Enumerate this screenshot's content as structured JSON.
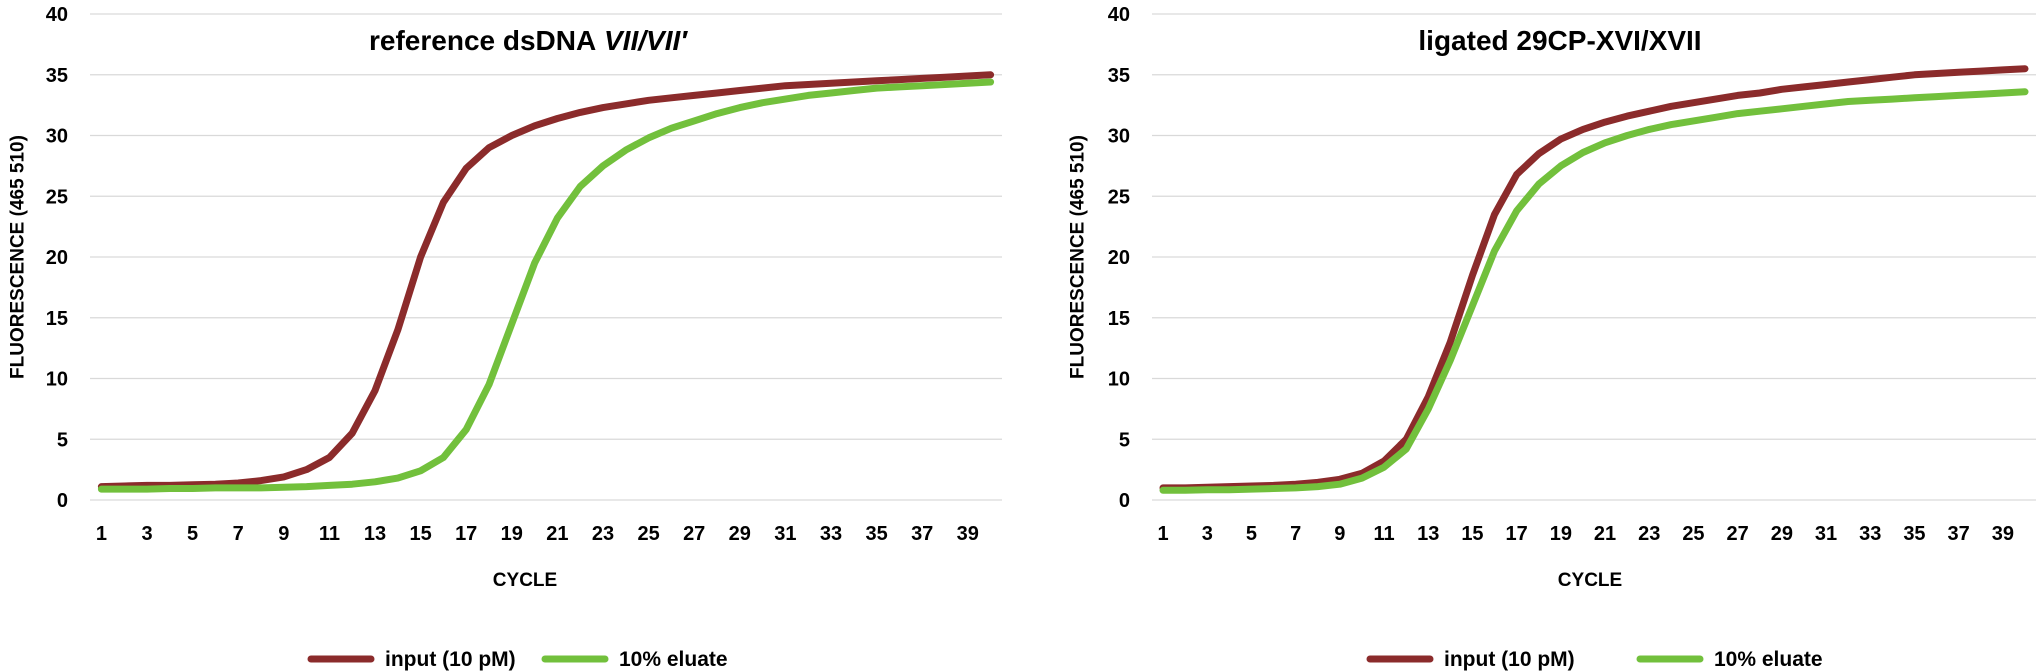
{
  "colors": {
    "input": "#8b2b2b",
    "eluate": "#72c03c",
    "grid": "#d9d9d9"
  },
  "chart_data": [
    {
      "type": "line",
      "title": "reference dsDNA",
      "title_italic": "VII/VII′",
      "xlabel": "CYCLE",
      "ylabel": "FLUORESCENCE (465 510)",
      "ylim": [
        0,
        40
      ],
      "yticks": [
        0,
        5,
        10,
        15,
        20,
        25,
        30,
        35,
        40
      ],
      "xticks": [
        1,
        3,
        5,
        7,
        9,
        11,
        13,
        15,
        17,
        19,
        21,
        23,
        25,
        27,
        29,
        31,
        33,
        35,
        37,
        39
      ],
      "grid": "horizontal",
      "legend_position": "bottom",
      "x": [
        1,
        2,
        3,
        4,
        5,
        6,
        7,
        8,
        9,
        10,
        11,
        12,
        13,
        14,
        15,
        16,
        17,
        18,
        19,
        20,
        21,
        22,
        23,
        24,
        25,
        26,
        27,
        28,
        29,
        30,
        31,
        32,
        33,
        34,
        35,
        36,
        37,
        38,
        39,
        40
      ],
      "series": [
        {
          "name": "input (10 pM)",
          "color_key": "input",
          "values": [
            1.1,
            1.15,
            1.2,
            1.2,
            1.25,
            1.3,
            1.4,
            1.6,
            1.9,
            2.5,
            3.5,
            5.5,
            9.0,
            14.0,
            20.0,
            24.5,
            27.3,
            29.0,
            30.0,
            30.8,
            31.4,
            31.9,
            32.3,
            32.6,
            32.9,
            33.1,
            33.3,
            33.5,
            33.7,
            33.9,
            34.1,
            34.2,
            34.3,
            34.4,
            34.5,
            34.6,
            34.7,
            34.8,
            34.9,
            35.0
          ]
        },
        {
          "name": "10% eluate",
          "color_key": "eluate",
          "values": [
            0.9,
            0.9,
            0.9,
            0.95,
            0.95,
            1.0,
            1.0,
            1.0,
            1.05,
            1.1,
            1.2,
            1.3,
            1.5,
            1.8,
            2.4,
            3.5,
            5.8,
            9.5,
            14.5,
            19.5,
            23.2,
            25.8,
            27.5,
            28.8,
            29.8,
            30.6,
            31.2,
            31.8,
            32.3,
            32.7,
            33.0,
            33.3,
            33.5,
            33.7,
            33.9,
            34.0,
            34.1,
            34.2,
            34.3,
            34.4
          ]
        }
      ]
    },
    {
      "type": "line",
      "title": "ligated 29CP-XVI/XVII",
      "xlabel": "CYCLE",
      "ylabel": "FLUORESCENCE (465 510)",
      "ylim": [
        0,
        40
      ],
      "yticks": [
        0,
        5,
        10,
        15,
        20,
        25,
        30,
        35,
        40
      ],
      "xticks": [
        1,
        3,
        5,
        7,
        9,
        11,
        13,
        15,
        17,
        19,
        21,
        23,
        25,
        27,
        29,
        31,
        33,
        35,
        37,
        39
      ],
      "grid": "horizontal",
      "legend_position": "bottom",
      "x": [
        1,
        2,
        3,
        4,
        5,
        6,
        7,
        8,
        9,
        10,
        11,
        12,
        13,
        14,
        15,
        16,
        17,
        18,
        19,
        20,
        21,
        22,
        23,
        24,
        25,
        26,
        27,
        28,
        29,
        30,
        31,
        32,
        33,
        34,
        35,
        36,
        37,
        38,
        39,
        40
      ],
      "series": [
        {
          "name": "input (10 pM)",
          "color_key": "input",
          "values": [
            1.0,
            1.0,
            1.05,
            1.1,
            1.15,
            1.2,
            1.3,
            1.45,
            1.7,
            2.2,
            3.2,
            5.0,
            8.5,
            13.0,
            18.5,
            23.5,
            26.8,
            28.5,
            29.7,
            30.5,
            31.1,
            31.6,
            32.0,
            32.4,
            32.7,
            33.0,
            33.3,
            33.5,
            33.8,
            34.0,
            34.2,
            34.4,
            34.6,
            34.8,
            35.0,
            35.1,
            35.2,
            35.3,
            35.4,
            35.5
          ]
        },
        {
          "name": "10% eluate",
          "color_key": "eluate",
          "values": [
            0.8,
            0.8,
            0.85,
            0.85,
            0.9,
            0.95,
            1.0,
            1.1,
            1.3,
            1.8,
            2.7,
            4.2,
            7.5,
            11.5,
            16.0,
            20.5,
            23.8,
            26.0,
            27.5,
            28.6,
            29.4,
            30.0,
            30.5,
            30.9,
            31.2,
            31.5,
            31.8,
            32.0,
            32.2,
            32.4,
            32.6,
            32.8,
            32.9,
            33.0,
            33.1,
            33.2,
            33.3,
            33.4,
            33.5,
            33.6
          ]
        }
      ]
    }
  ]
}
